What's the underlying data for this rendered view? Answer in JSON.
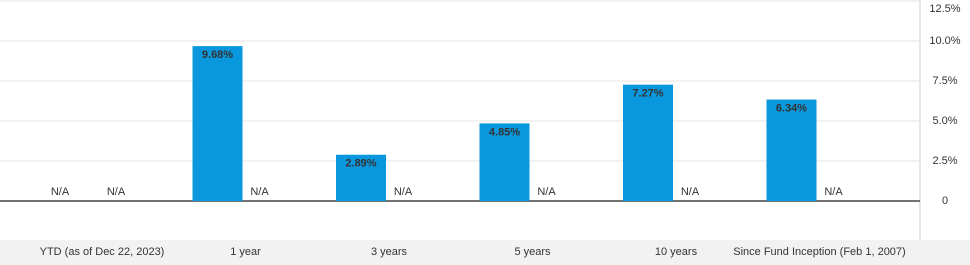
{
  "chart_data": {
    "type": "bar",
    "categories": [
      "YTD (as of Dec 22, 2023)",
      "1 year",
      "3 years",
      "5 years",
      "10 years",
      "Since Fund Inception (Feb 1, 2007)"
    ],
    "series": [
      {
        "color": "#0997dd",
        "values": [
          null,
          9.68,
          2.89,
          4.85,
          7.27,
          6.34
        ],
        "value_labels": [
          "N/A",
          "9.68%",
          "2.89%",
          "4.85%",
          "7.27%",
          "6.34%"
        ]
      },
      {
        "values": [
          null,
          null,
          null,
          null,
          null,
          null
        ],
        "value_labels": [
          "N/A",
          "N/A",
          "N/A",
          "N/A",
          "N/A",
          "N/A"
        ]
      }
    ],
    "ylim": [
      0,
      12.5
    ],
    "yticks": [
      0,
      {
        "value": 2.5,
        "label": "2.5%"
      },
      {
        "value": 5,
        "label": "5.0%"
      },
      {
        "value": 7.5,
        "label": "7.5%"
      },
      {
        "value": 10,
        "label": "10.0%"
      },
      {
        "value": 12.5,
        "label": "12.5%"
      }
    ],
    "grid": true
  }
}
